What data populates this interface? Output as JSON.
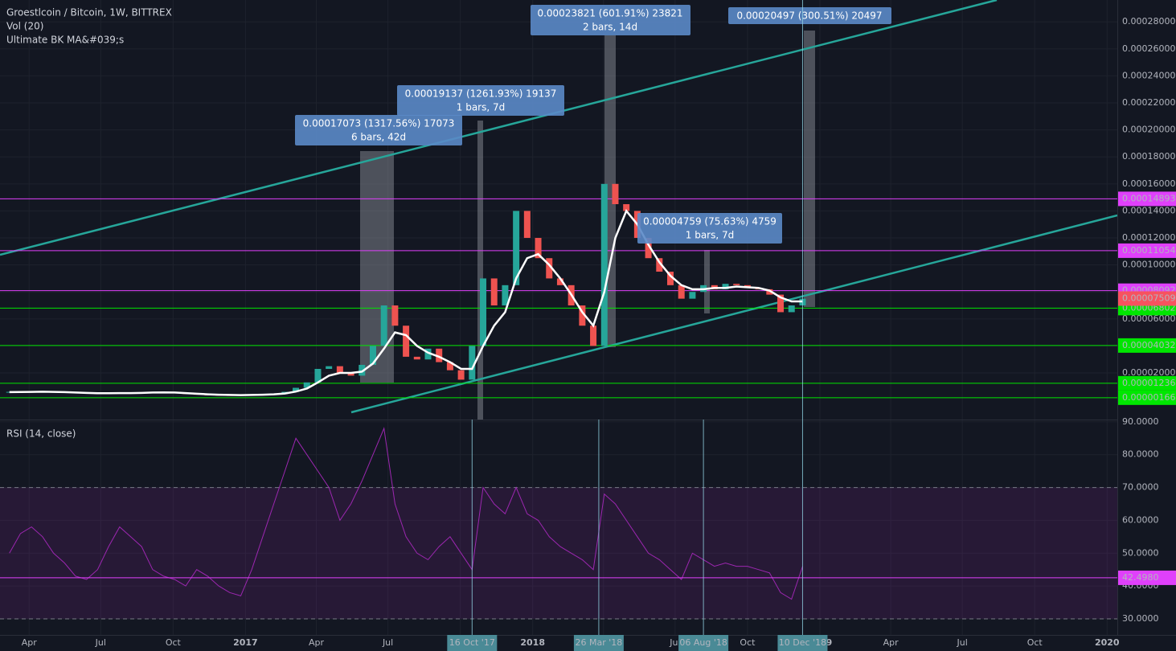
{
  "chart_data": {
    "type": "candlestick",
    "title": "Groestlcoin / Bitcoin, 1W, BITTREX",
    "volume_label": "Vol (20)",
    "color_up": "#26a69a",
    "color_down": "#ef5350",
    "grid": true,
    "xlim": [
      "2016-02-24",
      "2020-01-14"
    ],
    "xticks": [
      {
        "value": "2016-04-01",
        "label": "Apr"
      },
      {
        "value": "2016-07-01",
        "label": "Jul"
      },
      {
        "value": "2016-10-01",
        "label": "Oct"
      },
      {
        "value": "2017-01-01",
        "label": "2017"
      },
      {
        "value": "2017-04-01",
        "label": "Apr"
      },
      {
        "value": "2017-07-01",
        "label": "Jul"
      },
      {
        "value": "2017-10-01",
        "label": "Oct"
      },
      {
        "value": "2018-01-01",
        "label": "2018"
      },
      {
        "value": "2018-04-01",
        "label": "Apr"
      },
      {
        "value": "2018-07-01",
        "label": "Jul"
      },
      {
        "value": "2018-10-01",
        "label": "Oct"
      },
      {
        "value": "2019-01-01",
        "label": "2019"
      },
      {
        "value": "2019-04-01",
        "label": "Apr"
      },
      {
        "value": "2019-07-01",
        "label": "Jul"
      },
      {
        "value": "2019-10-01",
        "label": "Oct"
      },
      {
        "value": "2020-01-01",
        "label": "2020"
      }
    ],
    "crosshair_dates": [
      {
        "value": "2017-10-16",
        "label": "16 Oct '17"
      },
      {
        "value": "2018-03-26",
        "label": "26 Mar '18"
      },
      {
        "value": "2018-08-06",
        "label": "06 Aug '18"
      },
      {
        "value": "2018-12-10",
        "label": "10 Dec '18"
      }
    ],
    "ylim": [
      -1.45e-05,
      0.0002962
    ],
    "yticks": [
      {
        "value": 2e-05,
        "label": "0.00002000"
      },
      {
        "value": 4e-05,
        "label": "0.00004000"
      },
      {
        "value": 6e-05,
        "label": "0.00006000"
      },
      {
        "value": 8e-05,
        "label": "0.00008000"
      },
      {
        "value": 0.0001,
        "label": "0.00010000"
      },
      {
        "value": 0.00012,
        "label": "0.00012000"
      },
      {
        "value": 0.00014,
        "label": "0.00014000"
      },
      {
        "value": 0.00016,
        "label": "0.00016000"
      },
      {
        "value": 0.00018,
        "label": "0.00018000"
      },
      {
        "value": 0.0002,
        "label": "0.00020000"
      },
      {
        "value": 0.00022,
        "label": "0.00022000"
      },
      {
        "value": 0.00024,
        "label": "0.00024000"
      },
      {
        "value": 0.00026,
        "label": "0.00026000"
      },
      {
        "value": 0.00028,
        "label": "0.00028000"
      }
    ],
    "levels": [
      {
        "value": 0.00014893,
        "label": "0.00014893",
        "color": "#e040fb"
      },
      {
        "value": 0.00011054,
        "label": "0.00011054",
        "color": "#e040fb"
      },
      {
        "value": 8.092e-05,
        "label": "0.00008092",
        "color": "#e040fb"
      },
      {
        "value": 6.802e-05,
        "label": "0.00006802",
        "color": "#00e600"
      },
      {
        "value": 4.032e-05,
        "label": "0.00004032",
        "color": "#00e600"
      },
      {
        "value": 1.236e-05,
        "label": "0.00001236",
        "color": "#00e600"
      },
      {
        "value": 1.66e-06,
        "label": "0.00000166",
        "color": "#00e600"
      }
    ],
    "last_price": {
      "value": 7.509e-05,
      "label": "0.00007509",
      "color": "#f7525f"
    },
    "x": [
      "2016-03-07",
      "2016-03-21",
      "2016-04-04",
      "2016-04-18",
      "2016-05-02",
      "2016-05-16",
      "2016-05-30",
      "2016-06-13",
      "2016-06-27",
      "2016-07-11",
      "2016-07-25",
      "2016-08-08",
      "2016-08-22",
      "2016-09-05",
      "2016-09-19",
      "2016-10-03",
      "2016-10-17",
      "2016-10-31",
      "2016-11-14",
      "2016-11-28",
      "2016-12-12",
      "2016-12-26",
      "2017-01-09",
      "2017-01-23",
      "2017-02-06",
      "2017-02-20",
      "2017-03-06",
      "2017-03-20",
      "2017-04-03",
      "2017-04-17",
      "2017-05-01",
      "2017-05-15",
      "2017-05-29",
      "2017-06-12",
      "2017-06-26",
      "2017-07-10",
      "2017-07-24",
      "2017-08-07",
      "2017-08-21",
      "2017-09-04",
      "2017-09-18",
      "2017-10-02",
      "2017-10-16",
      "2017-10-30",
      "2017-11-13",
      "2017-11-27",
      "2017-12-11",
      "2017-12-25",
      "2018-01-08",
      "2018-01-22",
      "2018-02-05",
      "2018-02-19",
      "2018-03-05",
      "2018-03-19",
      "2018-04-02",
      "2018-04-16",
      "2018-04-30",
      "2018-05-14",
      "2018-05-28",
      "2018-06-11",
      "2018-06-25",
      "2018-07-09",
      "2018-07-23",
      "2018-08-06",
      "2018-08-20",
      "2018-09-03",
      "2018-09-17",
      "2018-10-01",
      "2018-10-15",
      "2018-10-29",
      "2018-11-12",
      "2018-11-26",
      "2018-12-10"
    ],
    "values": [
      6e-06,
      5.8e-06,
      6.5e-06,
      6.2e-06,
      5.8e-06,
      5.5e-06,
      5.2e-06,
      5e-06,
      4.8e-06,
      5e-06,
      5.2e-06,
      5e-06,
      5.5e-06,
      6e-06,
      5.8e-06,
      5e-06,
      4.5e-06,
      4e-06,
      3.8e-06,
      3.6e-06,
      3.5e-06,
      3.7e-06,
      4e-06,
      4.2e-06,
      4.5e-06,
      6e-06,
      9e-06,
      1.3e-05,
      2.3e-05,
      2.5e-05,
      2e-05,
      1.8e-05,
      2.6e-05,
      4e-05,
      7e-05,
      5.5e-05,
      3.2e-05,
      3e-05,
      3.8e-05,
      2.8e-05,
      2.2e-05,
      1.5e-05,
      4e-05,
      9e-05,
      7e-05,
      8.5e-05,
      0.00014,
      0.00012,
      0.000105,
      9e-05,
      8.5e-05,
      7e-05,
      5.5e-05,
      4e-05,
      0.00016,
      0.000145,
      0.00014,
      0.00012,
      0.000105,
      9.5e-05,
      8.5e-05,
      7.5e-05,
      8e-05,
      8.5e-05,
      8.2e-05,
      8.6e-05,
      8.5e-05,
      8.3e-05,
      8.2e-05,
      7.8e-05,
      6.5e-05,
      7e-05,
      7.5e-05
    ],
    "overlays": [
      {
        "name": "Ultimate BK MA&#039;s",
        "color": "#ffffff",
        "values": [
          5.8e-06,
          5.9e-06,
          6e-06,
          6.1e-06,
          6e-06,
          5.8e-06,
          5.5e-06,
          5.2e-06,
          5e-06,
          5e-06,
          5.1e-06,
          5.1e-06,
          5.2e-06,
          5.5e-06,
          5.6e-06,
          5.5e-06,
          5.1e-06,
          4.6e-06,
          4.2e-06,
          3.9e-06,
          3.7e-06,
          3.6e-06,
          3.7e-06,
          3.9e-06,
          4.2e-06,
          4.8e-06,
          6.2e-06,
          8.5e-06,
          1.3e-05,
          1.8e-05,
          2e-05,
          2e-05,
          2.1e-05,
          2.7e-05,
          3.8e-05,
          5e-05,
          4.8e-05,
          4e-05,
          3.5e-05,
          3.2e-05,
          2.8e-05,
          2.3e-05,
          2.3e-05,
          4e-05,
          5.5e-05,
          6.5e-05,
          9e-05,
          0.000105,
          0.000108,
          0.0001,
          9e-05,
          7.8e-05,
          6.5e-05,
          5.5e-05,
          8e-05,
          0.00012,
          0.00014,
          0.00013,
          0.000115,
          0.000102,
          9.2e-05,
          8.5e-05,
          8.2e-05,
          8.2e-05,
          8.3e-05,
          8.3e-05,
          8.4e-05,
          8.35e-05,
          8.3e-05,
          8.1e-05,
          7.6e-05,
          7.3e-05,
          7.3e-05
        ]
      }
    ],
    "measurements": [
      {
        "lines": [
          "0.00017073 (1317.56%) 17073",
          "6 bars, 42d"
        ]
      },
      {
        "lines": [
          "0.00019137 (1261.93%) 19137",
          "1 bars, 7d"
        ]
      },
      {
        "lines": [
          "0.00023821 (601.91%) 23821",
          "2 bars, 14d"
        ]
      },
      {
        "lines": [
          "0.00020497 (300.51%) 20497"
        ]
      },
      {
        "lines": [
          "0.00004759 (75.63%) 4759",
          "1 bars, 7d"
        ]
      }
    ],
    "rsi": {
      "title": "RSI (14, close)",
      "color": "#9c27b0",
      "ylim": [
        25.1,
        90.7
      ],
      "yticks": [
        {
          "value": 30,
          "label": "30.0000"
        },
        {
          "value": 40,
          "label": "40.0000"
        },
        {
          "value": 50,
          "label": "50.0000"
        },
        {
          "value": 60,
          "label": "60.0000"
        },
        {
          "value": 70,
          "label": "70.0000"
        },
        {
          "value": 80,
          "label": "80.0000"
        },
        {
          "value": 90,
          "label": "90.0000"
        }
      ],
      "band": [
        30,
        70
      ],
      "last": {
        "value": 42.498,
        "label": "42.4980",
        "color": "#e040fb"
      },
      "values": [
        50,
        56,
        58,
        55,
        50,
        47,
        43,
        42,
        45,
        52,
        58,
        55,
        52,
        45,
        43,
        42,
        40,
        45,
        43,
        40,
        38,
        37,
        45,
        55,
        65,
        75,
        85,
        80,
        75,
        70,
        60,
        65,
        72,
        80,
        88,
        65,
        55,
        50,
        48,
        52,
        55,
        50,
        45,
        70,
        65,
        62,
        70,
        62,
        60,
        55,
        52,
        50,
        48,
        45,
        68,
        65,
        60,
        55,
        50,
        48,
        45,
        42,
        50,
        48,
        46,
        47,
        46,
        46,
        45,
        44,
        38,
        36,
        46
      ]
    }
  }
}
